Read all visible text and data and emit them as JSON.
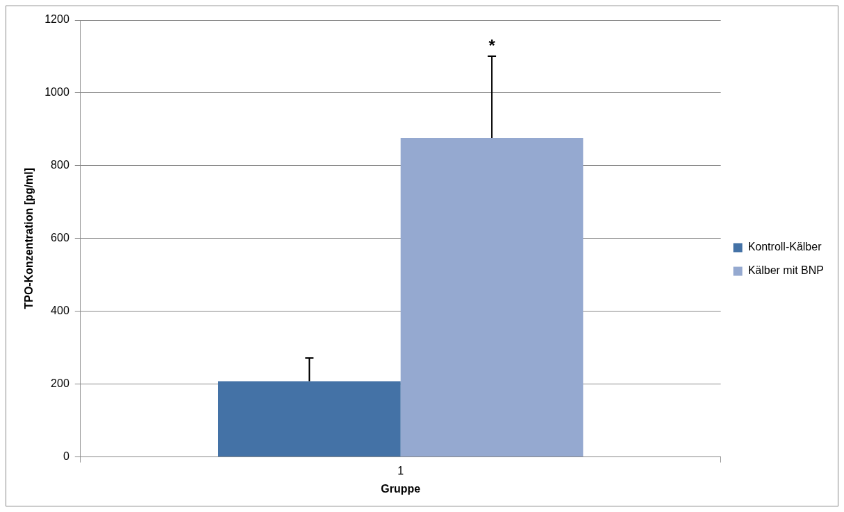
{
  "chart_data": {
    "type": "bar",
    "xlabel": "Gruppe",
    "ylabel": "TPO-Konzentration [pg/ml]",
    "categories": [
      "1"
    ],
    "series": [
      {
        "name": "Kontroll-Kälber",
        "color": "#4472a6",
        "values": [
          208
        ],
        "errors": [
          [
            208,
            272
          ]
        ]
      },
      {
        "name": "Kälber mit BNP",
        "color": "#95a9d0",
        "values": [
          876
        ],
        "errors": [
          [
            876,
            1101
          ]
        ]
      }
    ],
    "ylim": [
      0,
      1200
    ],
    "yticks": [
      0,
      200,
      400,
      600,
      800,
      1000,
      1200
    ],
    "grid": "y",
    "legend": "right",
    "annotations": [
      "*"
    ]
  }
}
